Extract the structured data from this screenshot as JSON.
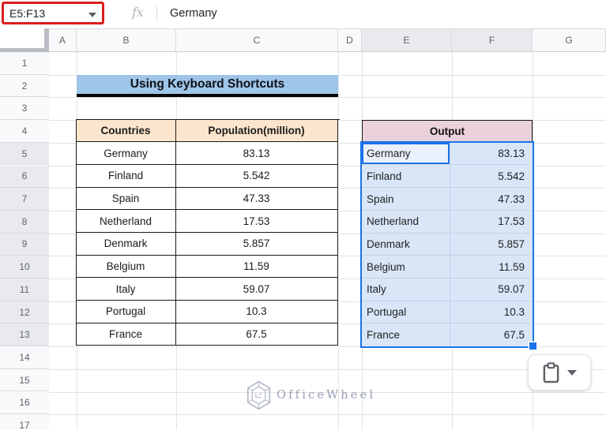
{
  "colors": {
    "annotation_red": "#de1d1d",
    "selection_blue": "#1a73e8",
    "selection_tint": "#d9e6f7",
    "banner_blue": "#9fc5e8",
    "source_header_tan": "#fce5cd",
    "output_header_pink": "#ead1dc",
    "header_gray": "#f8f9fa",
    "header_selected_gray": "#e8eaed"
  },
  "formula_bar": {
    "name_box_value": "E5:F13",
    "fx_label": "fx",
    "cell_content": "Germany"
  },
  "column_headers": [
    "A",
    "B",
    "C",
    "D",
    "E",
    "F",
    "G"
  ],
  "selected_columns": [
    "E",
    "F"
  ],
  "row_headers": [
    "1",
    "2",
    "3",
    "4",
    "5",
    "6",
    "7",
    "8",
    "9",
    "10",
    "11",
    "12",
    "13",
    "14",
    "15",
    "16",
    "17"
  ],
  "selected_rows": [
    "5",
    "6",
    "7",
    "8",
    "9",
    "10",
    "11",
    "12",
    "13"
  ],
  "banner": {
    "title": "Using Keyboard Shortcuts"
  },
  "source_table": {
    "columns": [
      "Countries",
      "Population(million)"
    ],
    "rows": [
      [
        "Germany",
        "83.13"
      ],
      [
        "Finland",
        "5.542"
      ],
      [
        "Spain",
        "47.33"
      ],
      [
        "Netherland",
        "17.53"
      ],
      [
        "Denmark",
        "5.857"
      ],
      [
        "Belgium",
        "11.59"
      ],
      [
        "Italy",
        "59.07"
      ],
      [
        "Portugal",
        "10.3"
      ],
      [
        "France",
        "67.5"
      ]
    ]
  },
  "output_table": {
    "title": "Output",
    "active_cell": "Germany",
    "rows": [
      [
        "Germany",
        "83.13"
      ],
      [
        "Finland",
        "5.542"
      ],
      [
        "Spain",
        "47.33"
      ],
      [
        "Netherland",
        "17.53"
      ],
      [
        "Denmark",
        "5.857"
      ],
      [
        "Belgium",
        "11.59"
      ],
      [
        "Italy",
        "59.07"
      ],
      [
        "Portugal",
        "10.3"
      ],
      [
        "France",
        "67.5"
      ]
    ]
  },
  "watermark": {
    "text": "OfficeWheel"
  }
}
